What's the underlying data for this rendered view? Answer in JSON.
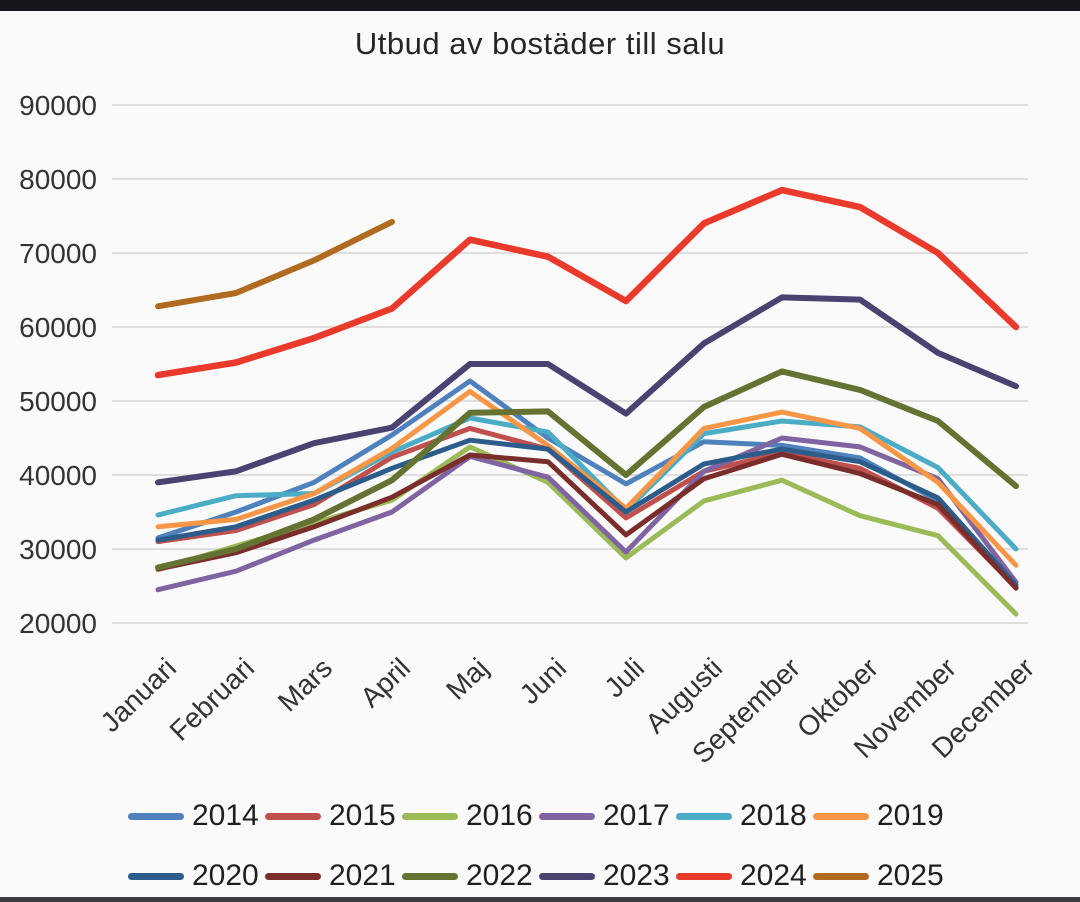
{
  "window": {
    "background": "#fbfafa",
    "top_bar_color": "#16161a",
    "bottom_bar_color": "#3c3c40"
  },
  "chart_data": {
    "type": "line",
    "title": "Utbud av bostäder till salu",
    "xlabel": "",
    "ylabel": "",
    "categories": [
      "Januari",
      "Februari",
      "Mars",
      "April",
      "Maj",
      "Juni",
      "Juli",
      "Augusti",
      "September",
      "Oktober",
      "November",
      "December"
    ],
    "ylim": [
      20000,
      90000
    ],
    "y_tick_step": 10000,
    "y_tick_labels": [
      "20000",
      "30000",
      "40000",
      "50000",
      "60000",
      "70000",
      "80000",
      "90000"
    ],
    "grid": "horizontal-only",
    "legend_position": "bottom",
    "legend_rows": [
      [
        "2014",
        "2015",
        "2016",
        "2017",
        "2018",
        "2019"
      ],
      [
        "2020",
        "2021",
        "2022",
        "2023",
        "2024",
        "2025"
      ]
    ],
    "series": [
      {
        "name": "2014",
        "color": "#4f81bd",
        "stroke_width": 5,
        "values": [
          31500,
          35000,
          39000,
          45400,
          52700,
          45000,
          38800,
          44500,
          44000,
          42300,
          36500,
          25000
        ]
      },
      {
        "name": "2015",
        "color": "#c0504d",
        "stroke_width": 5,
        "values": [
          31000,
          32500,
          36000,
          42400,
          46300,
          43500,
          34200,
          40500,
          43000,
          40900,
          35500,
          24800
        ]
      },
      {
        "name": "2016",
        "color": "#9bbb59",
        "stroke_width": 5,
        "values": [
          27200,
          30400,
          33500,
          36600,
          43800,
          39000,
          28800,
          36500,
          39300,
          34500,
          31800,
          21200
        ]
      },
      {
        "name": "2017",
        "color": "#8064a2",
        "stroke_width": 5,
        "values": [
          24500,
          27000,
          31200,
          35000,
          42500,
          39700,
          29600,
          40500,
          45000,
          43800,
          39500,
          25500
        ]
      },
      {
        "name": "2018",
        "color": "#4bacc6",
        "stroke_width": 5,
        "values": [
          34600,
          37200,
          37500,
          43100,
          47700,
          45800,
          35200,
          45600,
          47300,
          46500,
          41000,
          30000
        ]
      },
      {
        "name": "2019",
        "color": "#f79646",
        "stroke_width": 5,
        "values": [
          33000,
          34000,
          37500,
          43600,
          51300,
          44000,
          35500,
          46300,
          48500,
          46300,
          39000,
          27800
        ]
      },
      {
        "name": "2020",
        "color": "#2c5c8a",
        "stroke_width": 5,
        "values": [
          31200,
          33000,
          36600,
          40900,
          44700,
          43500,
          35000,
          41500,
          43500,
          41800,
          36900,
          25100
        ]
      },
      {
        "name": "2021",
        "color": "#7a2e2b",
        "stroke_width": 5,
        "values": [
          27300,
          29500,
          33000,
          37000,
          42700,
          41800,
          31900,
          39500,
          42800,
          40200,
          36000,
          24700
        ]
      },
      {
        "name": "2022",
        "color": "#647232",
        "stroke_width": 6,
        "values": [
          27500,
          30000,
          34000,
          39300,
          48400,
          48600,
          40000,
          49200,
          54000,
          51500,
          47300,
          38500
        ]
      },
      {
        "name": "2023",
        "color": "#4a4270",
        "stroke_width": 6,
        "values": [
          39000,
          40500,
          44300,
          46400,
          55000,
          55000,
          48300,
          57800,
          64000,
          63700,
          56500,
          52000
        ]
      },
      {
        "name": "2024",
        "color": "#e93a2c",
        "stroke_width": 6.5,
        "values": [
          53500,
          55200,
          58500,
          62500,
          71800,
          69500,
          63500,
          74000,
          78500,
          76200,
          70000,
          60000
        ]
      },
      {
        "name": "2025",
        "color": "#b16b20",
        "stroke_width": 6,
        "values": [
          62800,
          64600,
          69000,
          74200,
          null,
          null,
          null,
          null,
          null,
          null,
          null,
          null
        ]
      }
    ]
  }
}
